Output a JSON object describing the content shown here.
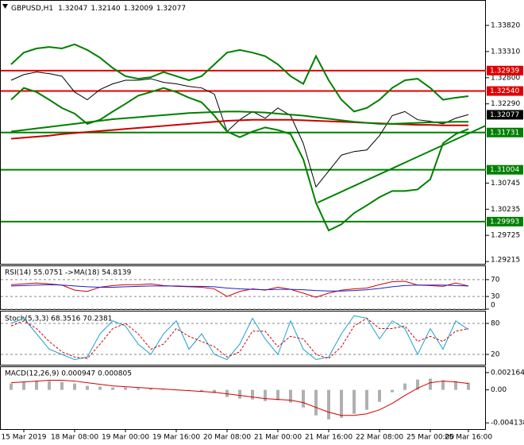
{
  "chart_data": [
    {
      "type": "line",
      "header": [
        "GBPUSD,H1",
        "1.32047",
        "1.32140",
        "1.32009",
        "1.32077"
      ],
      "categories": [
        null,
        "15 Mar 2019",
        null,
        null,
        null,
        "18 Mar 08:00",
        null,
        null,
        null,
        "19 Mar 00:00",
        null,
        null,
        null,
        "19 Mar 16:00",
        null,
        null,
        null,
        "20 Mar 08:00",
        null,
        null,
        null,
        "21 Mar 00:00",
        null,
        null,
        null,
        "21 Mar 16:00",
        null,
        null,
        null,
        "22 Mar 08:00",
        null,
        null,
        null,
        "25 Mar 00:00",
        null,
        null,
        "25 Mar 16:00"
      ],
      "series": [
        {
          "color": "#000000",
          "values": [
            1.3275,
            1.3286,
            1.3291,
            1.3288,
            1.3283,
            1.3252,
            1.3237,
            1.3257,
            1.3268,
            1.3275,
            1.3275,
            1.3278,
            1.3271,
            1.3268,
            1.3263,
            1.326,
            1.3248,
            1.3175,
            1.3198,
            1.3214,
            1.3201,
            1.3221,
            1.3206,
            1.3152,
            1.3067,
            1.3098,
            1.3129,
            1.3136,
            1.3139,
            1.3167,
            1.3206,
            1.3214,
            1.3198,
            1.3195,
            1.319,
            1.3201,
            1.3208
          ]
        },
        {
          "color": "#008000",
          "values": [
            1.3306,
            1.3329,
            1.3337,
            1.334,
            1.3337,
            1.3345,
            1.3334,
            1.3319,
            1.3299,
            1.3283,
            1.3278,
            1.3281,
            1.3291,
            1.3283,
            1.3275,
            1.3283,
            1.3306,
            1.3329,
            1.3334,
            1.3329,
            1.3322,
            1.3306,
            1.3283,
            1.3268,
            1.3322,
            1.3275,
            1.3237,
            1.3214,
            1.3221,
            1.3237,
            1.326,
            1.3275,
            1.3278,
            1.326,
            1.3237,
            1.3241,
            1.3244
          ]
        },
        {
          "color": "#008000",
          "values": [
            1.3237,
            1.326,
            1.3252,
            1.3237,
            1.3221,
            1.321,
            1.319,
            1.3198,
            1.3214,
            1.3229,
            1.3245,
            1.3252,
            1.326,
            1.3252,
            1.3241,
            1.3232,
            1.3206,
            1.3175,
            1.3164,
            1.3175,
            1.3183,
            1.3178,
            1.317,
            1.3121,
            1.3036,
            1.2982,
            1.2994,
            1.3016,
            1.3031,
            1.3047,
            1.3059,
            1.3059,
            1.3062,
            1.3082,
            1.3152,
            1.317,
            1.318
          ]
        },
        {
          "color": "#cc0000",
          "values": [
            1.3161,
            1.3163,
            1.3165,
            1.3167,
            1.317,
            1.3172,
            1.3174,
            1.3176,
            1.3178,
            1.318,
            1.3182,
            1.3184,
            1.3186,
            1.3188,
            1.319,
            1.3192,
            1.3194,
            1.3196,
            1.3197,
            1.3198,
            1.3198,
            1.3198,
            1.3198,
            1.3197,
            1.3196,
            1.3195,
            1.3194,
            1.3193,
            1.3192,
            1.3191,
            1.319,
            1.3189,
            1.3188,
            1.3188,
            1.3187,
            1.3187,
            1.3187
          ]
        },
        {
          "color": "#008000",
          "values": [
            1.3175,
            1.3178,
            1.3181,
            1.3184,
            1.3187,
            1.319,
            1.3193,
            1.3196,
            1.3199,
            1.3201,
            1.3203,
            1.3205,
            1.3207,
            1.3209,
            1.3211,
            1.3212,
            1.3213,
            1.3214,
            1.3214,
            1.3213,
            1.3212,
            1.321,
            1.3208,
            1.3206,
            1.3203,
            1.32,
            1.3197,
            1.3194,
            1.3192,
            1.319,
            1.319,
            1.3191,
            1.3192,
            1.3193,
            1.3193,
            1.3194,
            1.3194
          ]
        }
      ],
      "ylim": [
        1.2917,
        1.343
      ],
      "yticks": [
        {
          "value": 1.3382,
          "label": "1.33820"
        },
        {
          "value": 1.3331,
          "label": "1.33310"
        },
        {
          "value": 1.328,
          "label": "1.32800"
        },
        {
          "value": 1.3229,
          "label": "1.32290"
        },
        {
          "value": 1.30745,
          "label": "1.30745"
        },
        {
          "value": 1.30235,
          "label": "1.30235"
        },
        {
          "value": 1.29725,
          "label": "1.29725"
        },
        {
          "value": 1.29215,
          "label": "1.29215"
        }
      ],
      "levels": [
        {
          "value": 1.32939,
          "label": "1.32939",
          "color": "#e00000"
        },
        {
          "value": 1.3254,
          "label": "1.32540",
          "color": "#e00000"
        },
        {
          "value": 1.31731,
          "label": "1.31731",
          "color": "#008000"
        },
        {
          "value": 1.31004,
          "label": "1.31004",
          "color": "#008000"
        },
        {
          "value": 1.29993,
          "label": "1.29993",
          "color": "#008000"
        }
      ],
      "last_price": {
        "value": 1.32077,
        "label": "1.32077",
        "color": "#000000"
      }
    },
    {
      "type": "line",
      "title": "RSI(14) 55.0751  ->MA(18) 54.8139",
      "ylim": [
        0,
        100
      ],
      "yticks": [
        70,
        30,
        0
      ],
      "series": [
        {
          "color": "#d00000",
          "values": [
            58,
            60,
            62,
            60,
            57,
            45,
            42,
            52,
            56,
            58,
            58,
            60,
            56,
            54,
            53,
            52,
            48,
            30,
            42,
            48,
            45,
            52,
            47,
            38,
            28,
            38,
            45,
            48,
            50,
            58,
            65,
            66,
            57,
            56,
            54,
            62,
            55
          ]
        },
        {
          "color": "#1e1ec8",
          "values": [
            55,
            56,
            57,
            58,
            57,
            55,
            53,
            52,
            52,
            53,
            54,
            55,
            55,
            55,
            54,
            54,
            53,
            50,
            48,
            47,
            46,
            47,
            47,
            46,
            44,
            43,
            43,
            44,
            46,
            49,
            53,
            56,
            57,
            57,
            57,
            56,
            55
          ]
        }
      ]
    },
    {
      "type": "line",
      "title": "Stoch(5,3,3) 68.3516 70.2381",
      "ylim": [
        0,
        100
      ],
      "yticks": [
        80,
        20
      ],
      "series": [
        {
          "color": "#20a0d0",
          "values": [
            80,
            90,
            60,
            30,
            20,
            10,
            15,
            60,
            85,
            75,
            40,
            20,
            60,
            85,
            30,
            60,
            20,
            10,
            40,
            90,
            50,
            20,
            85,
            30,
            10,
            15,
            60,
            95,
            90,
            50,
            85,
            70,
            20,
            70,
            30,
            85,
            68
          ]
        },
        {
          "color": "#d00000",
          "dash": true,
          "values": [
            75,
            85,
            70,
            45,
            25,
            15,
            12,
            40,
            70,
            80,
            60,
            30,
            40,
            70,
            55,
            45,
            35,
            15,
            25,
            65,
            65,
            35,
            55,
            50,
            20,
            12,
            35,
            75,
            90,
            70,
            70,
            75,
            45,
            55,
            45,
            65,
            70
          ]
        }
      ]
    },
    {
      "type": "bar",
      "title": "MACD(12,26,9) 0.000947 0.000805",
      "ylim": [
        -0.00492,
        0.00275
      ],
      "yticks": [
        0.002164,
        {
          "value": 0,
          "label": "0.00"
        },
        -0.004138
      ],
      "color": "#b0b0b0",
      "values": [
        0.0008,
        0.001,
        0.0011,
        0.0011,
        0.001,
        0.0008,
        0.0005,
        0.0004,
        0.0003,
        0.0003,
        0.0002,
        0.0002,
        0.0001,
        0,
        -0.0001,
        -0.0002,
        -0.0004,
        -0.0009,
        -0.0011,
        -0.0012,
        -0.0014,
        -0.0013,
        -0.0016,
        -0.0022,
        -0.0032,
        -0.0037,
        -0.0035,
        -0.003,
        -0.0025,
        -0.0015,
        -0.0003,
        0.0008,
        0.0013,
        0.0014,
        0.0012,
        0.0011,
        0.0009
      ],
      "signal": {
        "color": "#d00000",
        "values": [
          0.0009,
          0.001,
          0.0011,
          0.0012,
          0.0012,
          0.0011,
          0.0009,
          0.0007,
          0.0005,
          0.0004,
          0.0003,
          0.0002,
          0.0001,
          0,
          -0.0001,
          -0.0002,
          -0.0003,
          -0.0005,
          -0.0007,
          -0.0009,
          -0.0011,
          -0.0012,
          -0.0013,
          -0.0016,
          -0.0022,
          -0.0028,
          -0.0032,
          -0.0032,
          -0.003,
          -0.0025,
          -0.0017,
          -0.0007,
          0.0002,
          0.0009,
          0.0011,
          0.001,
          0.0008
        ]
      }
    }
  ]
}
